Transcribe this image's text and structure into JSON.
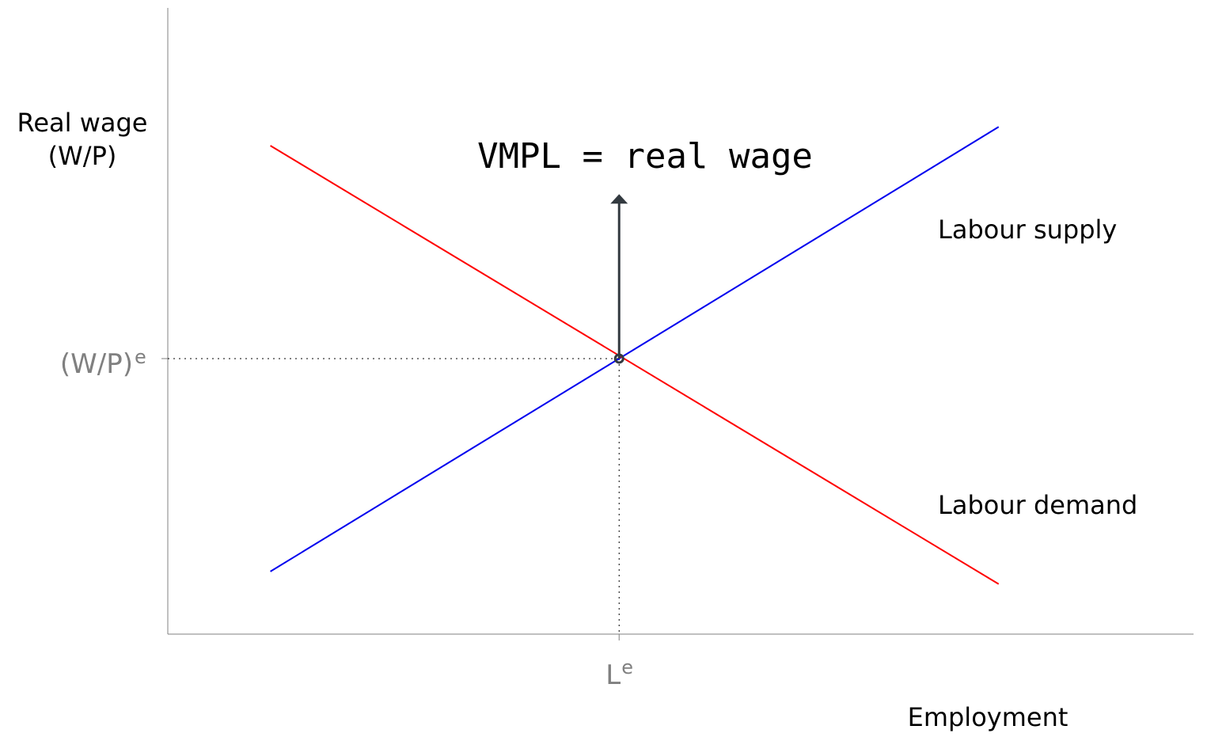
{
  "chart_data": {
    "type": "line",
    "ylabel_line1": "Real wage",
    "ylabel_line2": "(W/P)",
    "xlabel": "Employment",
    "xlim": [
      0,
      10
    ],
    "ylim": [
      0,
      10
    ],
    "series": [
      {
        "name": "Labour supply",
        "color": "#0000ee",
        "x": [
          1,
          8.1
        ],
        "y": [
          1,
          8.1
        ]
      },
      {
        "name": "Labour demand",
        "color": "#ff0000",
        "x": [
          1,
          8.1
        ],
        "y": [
          7.8,
          0.8
        ]
      }
    ],
    "equilibrium": {
      "x": 4.4,
      "y": 4.4,
      "x_tick_base": "L",
      "x_tick_sup": "e",
      "y_tick_base": "(W/P)",
      "y_tick_sup": "e"
    },
    "annotation": {
      "text": "VMPL = real wage",
      "arrow_from_y": 4.4,
      "arrow_to_y": 7.0,
      "arrow_color": "#333a40"
    }
  }
}
